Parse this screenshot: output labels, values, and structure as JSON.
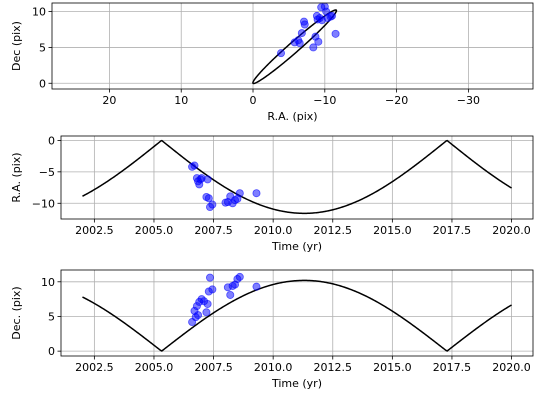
{
  "chart_data": [
    {
      "type": "scatter",
      "xlabel": "R.A. (pix)",
      "ylabel": "Dec (pix)",
      "xlim": [
        28,
        -39
      ],
      "ylim": [
        -0.8,
        11.2
      ],
      "xticks": [
        20,
        10,
        0,
        -10,
        -20,
        -30
      ],
      "xtick_labels": [
        "20",
        "10",
        "0",
        "−10",
        "−20",
        "−30"
      ],
      "yticks": [
        0,
        5,
        10
      ],
      "ytick_labels": [
        "0",
        "5",
        "10"
      ],
      "grid": true,
      "curve": {
        "kind": "ellipse",
        "points": [
          [
            0,
            0
          ],
          [
            -11.6,
            10.2
          ]
        ],
        "note_semiminor": 0.6
      },
      "points": {
        "x": [
          -3.9,
          -5.8,
          -6.3,
          -6.5,
          -6.8,
          -7.1,
          -7.2,
          -8.4,
          -8.9,
          -9.0,
          -9.1,
          -9.3,
          -9.5,
          -9.6,
          -10.0,
          -10.2,
          -10.4,
          -10.8,
          -11.0,
          -11.5,
          -8.7
        ],
        "y": [
          4.2,
          5.7,
          6.0,
          5.6,
          7.0,
          8.6,
          8.2,
          5.0,
          9.4,
          8.9,
          5.8,
          9.1,
          10.6,
          8.8,
          10.7,
          10.0,
          9.1,
          9.3,
          9.4,
          6.9,
          6.5
        ]
      }
    },
    {
      "type": "line",
      "xlabel": "Time (yr)",
      "ylabel": "R.A. (pix)",
      "xlim": [
        2001.1,
        2020.9
      ],
      "ylim": [
        -12.5,
        0.7
      ],
      "xticks": [
        2002.5,
        2005.0,
        2007.5,
        2010.0,
        2012.5,
        2015.0,
        2017.5,
        2020.0
      ],
      "xtick_labels": [
        "2002.5",
        "2005.0",
        "2007.5",
        "2010.0",
        "2012.5",
        "2015.0",
        "2017.5",
        "2020.0"
      ],
      "yticks": [
        0,
        -5,
        -10
      ],
      "ytick_labels": [
        "0",
        "−5",
        "−10"
      ],
      "grid": true,
      "curve": {
        "kind": "cusp",
        "t0": 2005.32,
        "period": 11.97,
        "amplitude": -11.6,
        "t_range": [
          2002.0,
          2020.0
        ]
      },
      "points": {
        "x": [
          2006.6,
          2006.7,
          2006.8,
          2006.85,
          2006.9,
          2006.95,
          2007.2,
          2007.3,
          2007.35,
          2007.45,
          2008.1,
          2008.2,
          2008.3,
          2008.4,
          2008.5,
          2008.6,
          2009.3,
          2007.25,
          2008.0,
          2007.0
        ],
        "y": [
          -4.2,
          -4.0,
          -6.0,
          -6.5,
          -7.0,
          -6.2,
          -9.0,
          -9.2,
          -10.6,
          -10.2,
          -9.8,
          -8.9,
          -10.0,
          -9.5,
          -9.3,
          -8.4,
          -8.4,
          -6.2,
          -9.9,
          -6.0
        ]
      }
    },
    {
      "type": "line",
      "xlabel": "Time (yr)",
      "ylabel": "Dec. (pix)",
      "xlim": [
        2001.1,
        2020.9
      ],
      "ylim": [
        -0.7,
        11.7
      ],
      "xticks": [
        2002.5,
        2005.0,
        2007.5,
        2010.0,
        2012.5,
        2015.0,
        2017.5,
        2020.0
      ],
      "xtick_labels": [
        "2002.5",
        "2005.0",
        "2007.5",
        "2010.0",
        "2012.5",
        "2015.0",
        "2017.5",
        "2020.0"
      ],
      "yticks": [
        0,
        5,
        10
      ],
      "ytick_labels": [
        "0",
        "5",
        "10"
      ],
      "grid": true,
      "curve": {
        "kind": "cusp",
        "t0": 2005.32,
        "period": 11.97,
        "amplitude": 10.2,
        "t_range": [
          2002.0,
          2020.0
        ]
      },
      "points": {
        "x": [
          2006.6,
          2006.7,
          2006.8,
          2006.85,
          2006.9,
          2007.0,
          2007.2,
          2007.3,
          2007.35,
          2007.45,
          2008.1,
          2008.2,
          2008.3,
          2008.4,
          2008.5,
          2008.6,
          2009.3,
          2007.25,
          2006.75,
          2007.1
        ],
        "y": [
          4.2,
          5.8,
          6.5,
          5.2,
          7.1,
          7.5,
          5.6,
          8.6,
          10.6,
          8.9,
          9.2,
          8.1,
          9.4,
          9.6,
          10.4,
          10.7,
          9.3,
          6.8,
          4.9,
          7.2
        ]
      }
    }
  ]
}
